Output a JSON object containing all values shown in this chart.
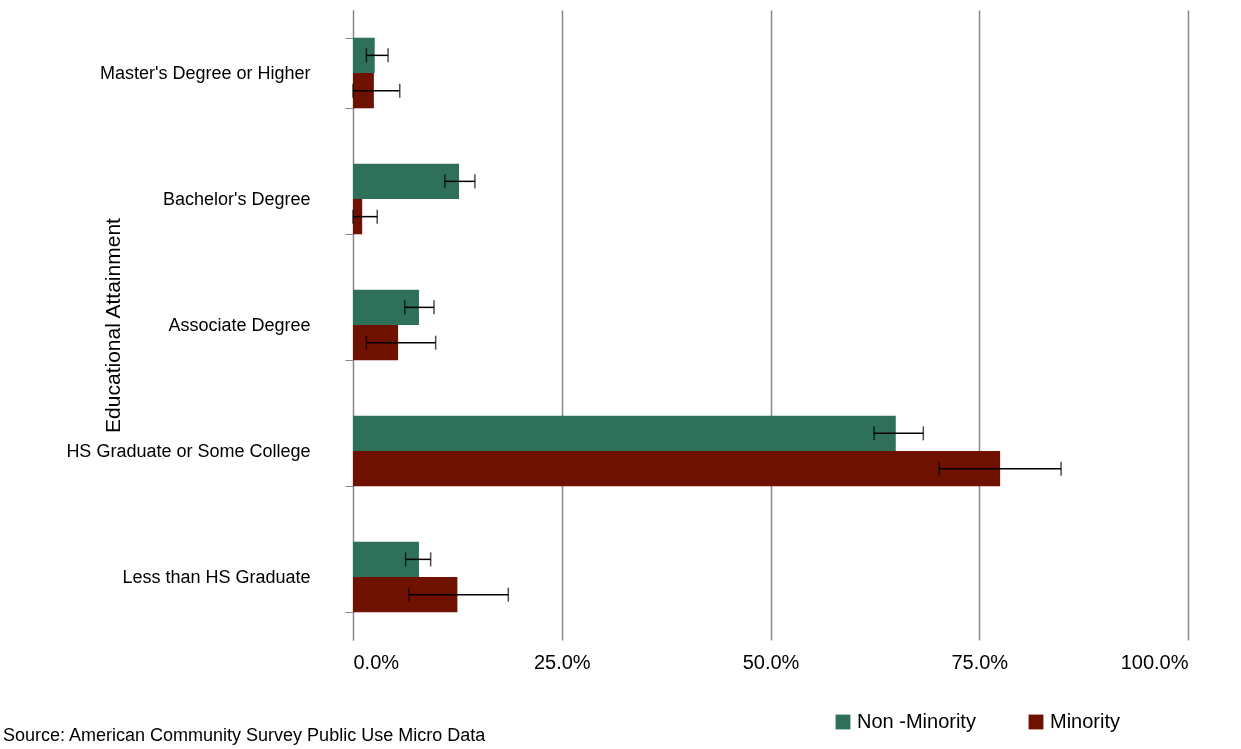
{
  "chart_data": {
    "type": "bar",
    "orientation": "horizontal",
    "ylabel": "Educational Attainment",
    "categories": [
      "Master's Degree or Higher",
      "Bachelor's Degree",
      "Associate Degree",
      "HS Graduate or Some College",
      "Less than HS Graduate"
    ],
    "series": [
      {
        "name": "Non -Minority",
        "color": "#2e7059",
        "values": [
          2.6,
          12.7,
          7.9,
          65.0,
          7.9
        ],
        "errors": [
          [
            1.6,
            4.2
          ],
          [
            11.0,
            14.6
          ],
          [
            6.2,
            9.7
          ],
          [
            62.4,
            68.3
          ],
          [
            6.3,
            9.3
          ]
        ]
      },
      {
        "name": "Minority",
        "color": "#6e1100",
        "values": [
          2.5,
          1.1,
          5.4,
          77.5,
          12.5
        ],
        "errors": [
          [
            0,
            5.6
          ],
          [
            0,
            2.9
          ],
          [
            1.6,
            9.9
          ],
          [
            70.2,
            84.8
          ],
          [
            6.7,
            18.6
          ]
        ]
      }
    ],
    "xlim": [
      0,
      100
    ],
    "xticks": [
      {
        "value": 0,
        "label": "0.0%"
      },
      {
        "value": 25,
        "label": "25.0%"
      },
      {
        "value": 50,
        "label": "50.0%"
      },
      {
        "value": 75,
        "label": "75.0%"
      },
      {
        "value": 100,
        "label": "100.0%"
      }
    ],
    "grid": "x",
    "legend": "bottom right",
    "annotations": [
      "Source:  American Community Survey Public Use Micro Data"
    ]
  }
}
